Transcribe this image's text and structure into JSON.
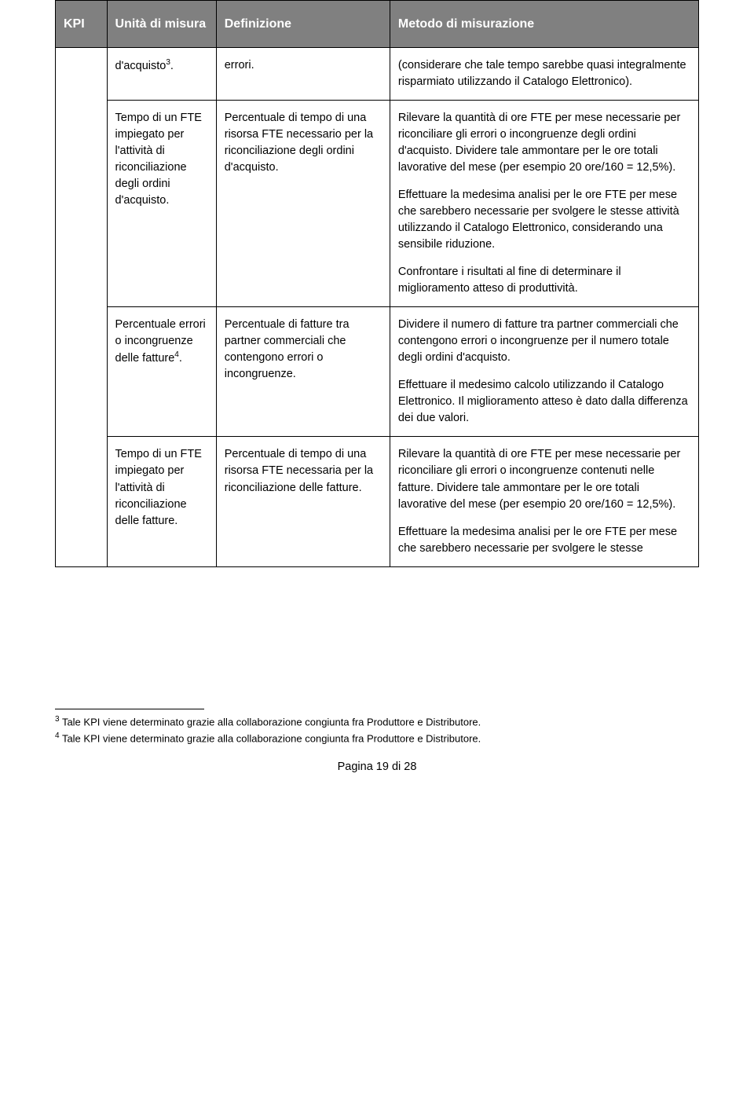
{
  "header": {
    "kpi": "KPI",
    "unit": "Unità di misura",
    "definition": "Definizione",
    "method": "Metodo di misurazione"
  },
  "rows": [
    {
      "unit": "d'acquisto",
      "unit_sup": "3",
      "unit_suffix": ".",
      "def": "errori.",
      "method": "(considerare che tale tempo sarebbe quasi integralmente risparmiato utilizzando il Catalogo Elettronico)."
    },
    {
      "unit": "Tempo di un FTE impiegato per l'attività di riconciliazione degli ordini d'acquisto.",
      "def": "Percentuale di tempo di una risorsa FTE necessario per la riconciliazione degli ordini d'acquisto.",
      "m1": "Rilevare la quantità di ore FTE per mese necessarie per riconciliare gli errori o incongruenze degli ordini d'acquisto. Dividere tale ammontare per le ore totali lavorative del mese (per esempio 20 ore/160 = 12,5%).",
      "m2": "Effettuare la medesima analisi per le ore FTE per mese che sarebbero necessarie per svolgere le stesse attività utilizzando il Catalogo Elettronico, considerando una sensibile riduzione.",
      "m3": "Confrontare i risultati al fine di determinare il miglioramento atteso di produttività."
    },
    {
      "unit_pre": "Percentuale errori o incongruenze delle fatture",
      "unit_sup": "4",
      "unit_suffix": ".",
      "def": "Percentuale di fatture tra partner commerciali che contengono errori o incongruenze.",
      "m1": "Dividere il numero di fatture  tra partner commerciali che contengono errori o incongruenze per il numero totale degli ordini d'acquisto.",
      "m2": "Effettuare il medesimo calcolo utilizzando il Catalogo Elettronico. Il miglioramento atteso è dato dalla differenza dei due valori."
    },
    {
      "unit": "Tempo di un FTE impiegato per l'attività di riconciliazione delle fatture.",
      "def": "Percentuale di tempo di una risorsa FTE necessaria per la riconciliazione delle fatture.",
      "m1": "Rilevare la quantità di ore FTE per mese necessarie per riconciliare gli errori o incongruenze contenuti nelle fatture. Dividere tale ammontare per le ore totali lavorative del mese (per esempio 20 ore/160 = 12,5%).",
      "m2": "Effettuare la medesima analisi per le ore FTE per mese che sarebbero necessarie per svolgere le stesse"
    }
  ],
  "footnotes": {
    "fn3_num": "3",
    "fn3": " Tale KPI viene determinato grazie alla collaborazione congiunta fra Produttore e Distributore.",
    "fn4_num": "4",
    "fn4": " Tale KPI viene determinato grazie alla collaborazione congiunta fra Produttore e Distributore."
  },
  "page_number": "Pagina 19 di 28"
}
